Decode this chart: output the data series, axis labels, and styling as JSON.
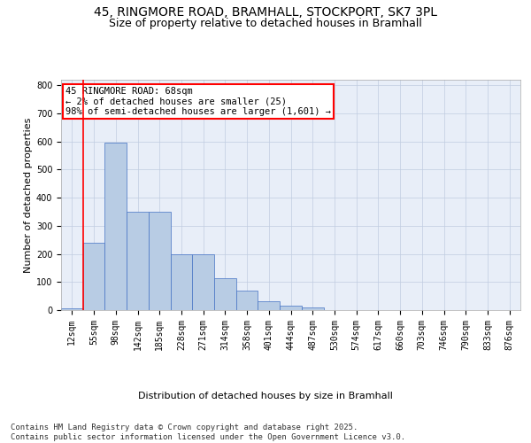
{
  "title_line1": "45, RINGMORE ROAD, BRAMHALL, STOCKPORT, SK7 3PL",
  "title_line2": "Size of property relative to detached houses in Bramhall",
  "xlabel": "Distribution of detached houses by size in Bramhall",
  "ylabel": "Number of detached properties",
  "bins": [
    "12sqm",
    "55sqm",
    "98sqm",
    "142sqm",
    "185sqm",
    "228sqm",
    "271sqm",
    "314sqm",
    "358sqm",
    "401sqm",
    "444sqm",
    "487sqm",
    "530sqm",
    "574sqm",
    "617sqm",
    "660sqm",
    "703sqm",
    "746sqm",
    "790sqm",
    "833sqm",
    "876sqm"
  ],
  "values": [
    5,
    240,
    595,
    350,
    350,
    200,
    200,
    115,
    70,
    30,
    15,
    10,
    0,
    0,
    0,
    0,
    0,
    0,
    0,
    0,
    0
  ],
  "bar_color": "#b8cce4",
  "bar_edge_color": "#4472c4",
  "vline_x_index": 1,
  "vline_color": "#ff0000",
  "annotation_text": "45 RINGMORE ROAD: 68sqm\n← 2% of detached houses are smaller (25)\n98% of semi-detached houses are larger (1,601) →",
  "annotation_box_color": "#ffffff",
  "annotation_box_edge_color": "#ff0000",
  "ylim": [
    0,
    820
  ],
  "yticks": [
    0,
    100,
    200,
    300,
    400,
    500,
    600,
    700,
    800
  ],
  "background_color": "#e8eef8",
  "footer_text": "Contains HM Land Registry data © Crown copyright and database right 2025.\nContains public sector information licensed under the Open Government Licence v3.0.",
  "title_fontsize": 10,
  "subtitle_fontsize": 9,
  "annotation_fontsize": 7.5,
  "footer_fontsize": 6.5,
  "axis_label_fontsize": 8,
  "tick_fontsize": 7
}
